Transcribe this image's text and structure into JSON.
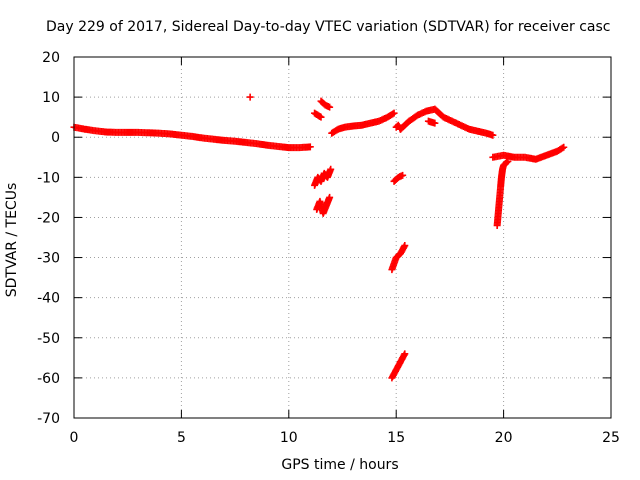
{
  "chart_data": {
    "type": "scatter",
    "title": "Day 229 of 2017, Sidereal Day-to-day VTEC variation (SDTVAR) for receiver casc",
    "xlabel": "GPS time / hours",
    "ylabel": "SDTVAR / TECUs",
    "xlim": [
      0,
      25
    ],
    "ylim": [
      -70,
      20
    ],
    "xticks": [
      0,
      5,
      10,
      15,
      20,
      25
    ],
    "yticks": [
      -70,
      -60,
      -50,
      -40,
      -30,
      -20,
      -10,
      0,
      10,
      20
    ],
    "grid": true,
    "marker": "+",
    "color": "#ff0000",
    "series": [
      {
        "name": "SDTVAR",
        "segments": [
          {
            "x": [
              0.0,
              0.5,
              1.0,
              1.5,
              2.0,
              2.5,
              3.0,
              3.5,
              4.0,
              4.5,
              5.0,
              5.5,
              6.0,
              6.5,
              7.0,
              7.5,
              8.0,
              8.5,
              9.0,
              9.5,
              10.0,
              10.5,
              11.0
            ],
            "y": [
              2.5,
              2.0,
              1.6,
              1.3,
              1.2,
              1.2,
              1.2,
              1.1,
              1.0,
              0.8,
              0.5,
              0.2,
              -0.2,
              -0.5,
              -0.8,
              -1.0,
              -1.3,
              -1.6,
              -2.0,
              -2.3,
              -2.6,
              -2.6,
              -2.4
            ]
          },
          {
            "x": [
              8.2
            ],
            "y": [
              10.0
            ]
          },
          {
            "x": [
              11.2,
              11.35,
              11.5,
              11.65,
              11.8,
              11.95
            ],
            "y": [
              -12.0,
              -10.0,
              -11.0,
              -9.0,
              -10.0,
              -8.0
            ]
          },
          {
            "x": [
              11.3,
              11.45,
              11.6,
              11.75,
              11.9
            ],
            "y": [
              -18.0,
              -16.0,
              -19.0,
              -17.0,
              -15.0
            ]
          },
          {
            "x": [
              11.2,
              11.35,
              11.5
            ],
            "y": [
              6.0,
              5.5,
              5.0
            ]
          },
          {
            "x": [
              11.5,
              11.7,
              11.9
            ],
            "y": [
              9.0,
              8.0,
              7.5
            ]
          },
          {
            "x": [
              12.0,
              12.3,
              12.6,
              13.0,
              13.4,
              13.8,
              14.2,
              14.6,
              14.9
            ],
            "y": [
              1.0,
              2.0,
              2.5,
              2.8,
              3.0,
              3.5,
              4.0,
              5.0,
              6.0
            ]
          },
          {
            "x": [
              15.0,
              15.1,
              15.2
            ],
            "y": [
              2.5,
              3.0,
              2.0
            ]
          },
          {
            "x": [
              14.9,
              15.1,
              15.3
            ],
            "y": [
              -11.0,
              -10.0,
              -9.5
            ]
          },
          {
            "x": [
              14.8,
              15.0,
              15.2,
              15.4
            ],
            "y": [
              -33.0,
              -30.0,
              -29.0,
              -27.0
            ]
          },
          {
            "x": [
              14.8,
              15.0,
              15.2,
              15.4
            ],
            "y": [
              -60.0,
              -58.0,
              -56.0,
              -54.0
            ]
          },
          {
            "x": [
              15.2,
              15.6,
              16.0,
              16.4,
              16.8,
              17.2,
              17.6,
              18.0,
              18.4,
              18.8,
              19.2,
              19.5
            ],
            "y": [
              2.0,
              4.0,
              5.5,
              6.5,
              7.0,
              5.0,
              4.0,
              3.0,
              2.0,
              1.5,
              1.0,
              0.5
            ]
          },
          {
            "x": [
              16.5,
              16.8
            ],
            "y": [
              4.0,
              3.5
            ]
          },
          {
            "x": [
              19.7,
              19.75,
              19.8,
              19.85,
              19.9,
              19.95,
              20.0,
              20.1,
              20.2
            ],
            "y": [
              -22.0,
              -19.0,
              -16.0,
              -13.0,
              -10.0,
              -8.0,
              -7.0,
              -6.5,
              -6.0
            ]
          },
          {
            "x": [
              19.5,
              20.0,
              20.5,
              21.0,
              21.5,
              22.0,
              22.5,
              22.8
            ],
            "y": [
              -5.0,
              -4.5,
              -5.0,
              -5.0,
              -5.5,
              -4.5,
              -3.5,
              -2.5
            ]
          }
        ]
      }
    ]
  }
}
